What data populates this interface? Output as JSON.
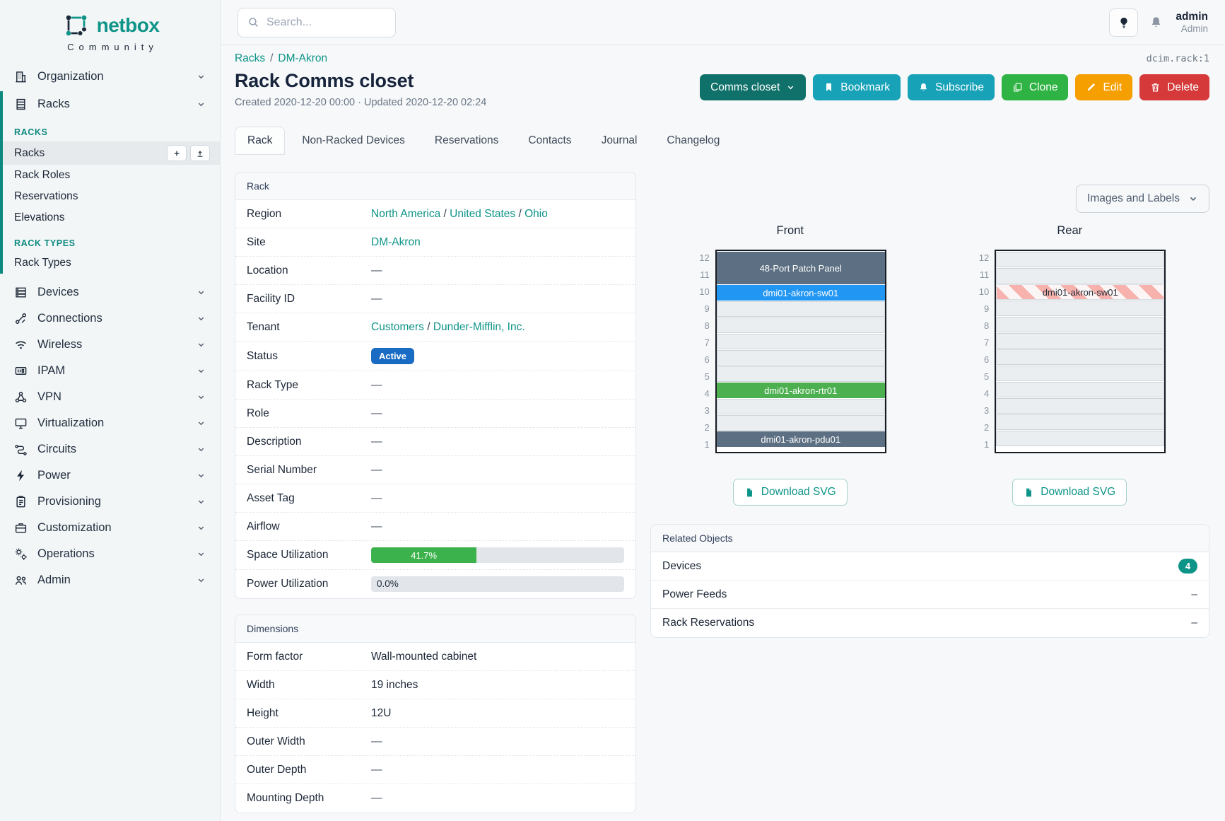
{
  "brand": {
    "name": "netbox",
    "tagline": "Community"
  },
  "header": {
    "search_placeholder": "Search...",
    "user_name": "admin",
    "user_role": "Admin"
  },
  "context_id": "dcim.rack:1",
  "breadcrumb": {
    "items": [
      "Racks",
      "DM-Akron"
    ],
    "separator": "/"
  },
  "page": {
    "title": "Rack Comms closet",
    "meta": "Created 2020-12-20 00:00 · Updated 2020-12-20 02:24"
  },
  "actions": [
    {
      "label": "Comms closet",
      "color": "#10716a",
      "icon_after": "chevron-down-icon"
    },
    {
      "label": "Bookmark",
      "icon": "bookmark-icon",
      "color": "#17a2b8"
    },
    {
      "label": "Subscribe",
      "icon": "bell-icon",
      "color": "#17a2b8"
    },
    {
      "label": "Clone",
      "icon": "copy-icon",
      "color": "#2fb344"
    },
    {
      "label": "Edit",
      "icon": "pencil-icon",
      "color": "#f59f00"
    },
    {
      "label": "Delete",
      "icon": "trash-icon",
      "color": "#d63939"
    }
  ],
  "tabs": [
    {
      "label": "Rack",
      "active": true
    },
    {
      "label": "Non-Racked Devices"
    },
    {
      "label": "Reservations"
    },
    {
      "label": "Contacts"
    },
    {
      "label": "Journal"
    },
    {
      "label": "Changelog"
    }
  ],
  "nav": [
    {
      "type": "top",
      "label": "Organization",
      "icon": "building-icon"
    },
    {
      "type": "expanded",
      "top": {
        "label": "Racks",
        "icon": "rack-icon"
      },
      "groups": [
        {
          "header": "RACKS",
          "items": [
            {
              "label": "Racks",
              "active": true,
              "actions": [
                "plus-icon",
                "upload-icon"
              ]
            },
            {
              "label": "Rack Roles"
            },
            {
              "label": "Reservations"
            },
            {
              "label": "Elevations"
            }
          ]
        },
        {
          "header": "RACK TYPES",
          "items": [
            {
              "label": "Rack Types"
            }
          ]
        }
      ]
    },
    {
      "type": "top",
      "label": "Devices",
      "icon": "server-icon"
    },
    {
      "type": "top",
      "label": "Connections",
      "icon": "plug-icon"
    },
    {
      "type": "top",
      "label": "Wireless",
      "icon": "wifi-icon"
    },
    {
      "type": "top",
      "label": "IPAM",
      "icon": "ipam-icon"
    },
    {
      "type": "top",
      "label": "VPN",
      "icon": "network-icon"
    },
    {
      "type": "top",
      "label": "Virtualization",
      "icon": "monitor-icon"
    },
    {
      "type": "top",
      "label": "Circuits",
      "icon": "circuit-icon"
    },
    {
      "type": "top",
      "label": "Power",
      "icon": "bolt-icon"
    },
    {
      "type": "top",
      "label": "Provisioning",
      "icon": "clipboard-icon"
    },
    {
      "type": "top",
      "label": "Customization",
      "icon": "briefcase-icon"
    },
    {
      "type": "top",
      "label": "Operations",
      "icon": "gears-icon"
    },
    {
      "type": "top",
      "label": "Admin",
      "icon": "users-icon"
    }
  ],
  "rack_panel": {
    "title": "Rack",
    "rows": [
      {
        "label": "Region",
        "type": "links",
        "parts": [
          "North America",
          "United States",
          "Ohio"
        ]
      },
      {
        "label": "Site",
        "type": "links",
        "parts": [
          "DM-Akron"
        ]
      },
      {
        "label": "Location",
        "type": "dash"
      },
      {
        "label": "Facility ID",
        "type": "dash"
      },
      {
        "label": "Tenant",
        "type": "links",
        "parts": [
          "Customers",
          "Dunder-Mifflin, Inc."
        ]
      },
      {
        "label": "Status",
        "type": "badge",
        "value": "Active",
        "color": "#1a6bc4"
      },
      {
        "label": "Rack Type",
        "type": "dash"
      },
      {
        "label": "Role",
        "type": "dash"
      },
      {
        "label": "Description",
        "type": "dash"
      },
      {
        "label": "Serial Number",
        "type": "dash"
      },
      {
        "label": "Asset Tag",
        "type": "dash"
      },
      {
        "label": "Airflow",
        "type": "dash"
      },
      {
        "label": "Space Utilization",
        "type": "progress",
        "value": 41.7,
        "display": "41.7%",
        "color": "#3cb24c"
      },
      {
        "label": "Power Utilization",
        "type": "progress",
        "value": 0,
        "display": "0.0%",
        "color": null
      }
    ]
  },
  "dimensions_panel": {
    "title": "Dimensions",
    "rows": [
      {
        "label": "Form factor",
        "type": "text",
        "value": "Wall-mounted cabinet"
      },
      {
        "label": "Width",
        "type": "text",
        "value": "19 inches"
      },
      {
        "label": "Height",
        "type": "text",
        "value": "12U"
      },
      {
        "label": "Outer Width",
        "type": "dash"
      },
      {
        "label": "Outer Depth",
        "type": "dash"
      },
      {
        "label": "Mounting Depth",
        "type": "dash"
      }
    ]
  },
  "elevations": {
    "view_toggle": "Images and Labels",
    "unit_count": 12,
    "front": {
      "title": "Front",
      "download_label": "Download SVG",
      "items": [
        {
          "span": 2,
          "kind": "device",
          "label": "48-Port Patch Panel",
          "color": "#5d7083"
        },
        {
          "span": 1,
          "kind": "device",
          "label": "dmi01-akron-sw01",
          "color": "#2196f3"
        },
        {
          "span": 5,
          "kind": "empty"
        },
        {
          "span": 1,
          "kind": "device",
          "label": "dmi01-akron-rtr01",
          "color": "#4caf50"
        },
        {
          "span": 2,
          "kind": "empty"
        },
        {
          "span": 1,
          "kind": "device",
          "label": "dmi01-akron-pdu01",
          "color": "#5d7083"
        }
      ]
    },
    "rear": {
      "title": "Rear",
      "download_label": "Download SVG",
      "items": [
        {
          "span": 2,
          "kind": "empty"
        },
        {
          "span": 1,
          "kind": "striped",
          "label": "dmi01-akron-sw01"
        },
        {
          "span": 9,
          "kind": "empty"
        }
      ]
    }
  },
  "related": {
    "title": "Related Objects",
    "rows": [
      {
        "label": "Devices",
        "badge": "4",
        "badge_color": "#0d9488"
      },
      {
        "label": "Power Feeds",
        "dash": true
      },
      {
        "label": "Rack Reservations",
        "dash": true
      }
    ]
  }
}
